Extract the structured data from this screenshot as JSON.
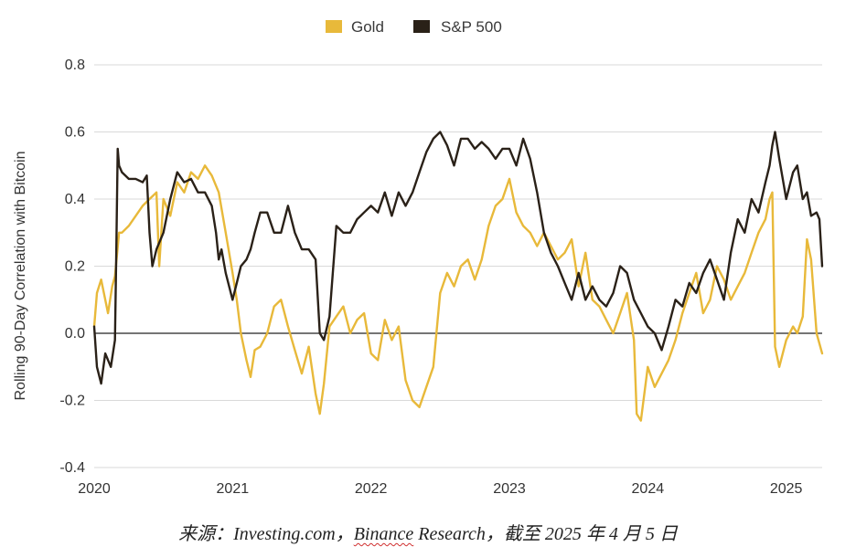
{
  "chart_data": {
    "type": "line",
    "ylabel": "Rolling 90-Day Correlation with Bitcoin",
    "ylim": [
      -0.4,
      0.8
    ],
    "yticks": [
      -0.4,
      -0.2,
      0.0,
      0.2,
      0.4,
      0.6,
      0.8
    ],
    "ytick_labels": [
      "-0.4",
      "-0.2",
      "0.0",
      "0.2",
      "0.4",
      "0.6",
      "0.8"
    ],
    "xlim": [
      2020.0,
      2025.26
    ],
    "xticks": [
      2020,
      2021,
      2022,
      2023,
      2024,
      2025
    ],
    "xtick_labels": [
      "2020",
      "2021",
      "2022",
      "2023",
      "2024",
      "2025"
    ],
    "grid": "horizontal",
    "legend_position": "top-center",
    "series": [
      {
        "name": "Gold",
        "color": "#e8b93a",
        "x": [
          2020.0,
          2020.02,
          2020.05,
          2020.08,
          2020.1,
          2020.13,
          2020.15,
          2020.18,
          2020.2,
          2020.25,
          2020.3,
          2020.35,
          2020.4,
          2020.45,
          2020.47,
          2020.5,
          2020.55,
          2020.6,
          2020.65,
          2020.7,
          2020.75,
          2020.8,
          2020.85,
          2020.9,
          2020.95,
          2021.0,
          2021.03,
          2021.06,
          2021.1,
          2021.13,
          2021.16,
          2021.2,
          2021.25,
          2021.3,
          2021.35,
          2021.4,
          2021.45,
          2021.5,
          2021.55,
          2021.6,
          2021.63,
          2021.66,
          2021.7,
          2021.75,
          2021.8,
          2021.85,
          2021.9,
          2021.95,
          2022.0,
          2022.05,
          2022.1,
          2022.15,
          2022.2,
          2022.25,
          2022.3,
          2022.35,
          2022.4,
          2022.45,
          2022.5,
          2022.55,
          2022.6,
          2022.65,
          2022.7,
          2022.75,
          2022.8,
          2022.85,
          2022.9,
          2022.95,
          2023.0,
          2023.05,
          2023.1,
          2023.15,
          2023.2,
          2023.25,
          2023.3,
          2023.35,
          2023.4,
          2023.45,
          2023.5,
          2023.55,
          2023.6,
          2023.65,
          2023.7,
          2023.75,
          2023.8,
          2023.85,
          2023.9,
          2023.92,
          2023.95,
          2024.0,
          2024.05,
          2024.1,
          2024.15,
          2024.2,
          2024.25,
          2024.3,
          2024.35,
          2024.4,
          2024.45,
          2024.5,
          2024.55,
          2024.6,
          2024.65,
          2024.7,
          2024.75,
          2024.8,
          2024.85,
          2024.88,
          2024.9,
          2024.92,
          2024.95,
          2025.0,
          2025.05,
          2025.08,
          2025.12,
          2025.15,
          2025.18,
          2025.22,
          2025.26
        ],
        "y": [
          0.02,
          0.12,
          0.16,
          0.1,
          0.06,
          0.14,
          0.17,
          0.3,
          0.3,
          0.32,
          0.35,
          0.38,
          0.4,
          0.42,
          0.2,
          0.4,
          0.35,
          0.45,
          0.42,
          0.48,
          0.46,
          0.5,
          0.47,
          0.42,
          0.3,
          0.18,
          0.1,
          0.0,
          -0.08,
          -0.13,
          -0.05,
          -0.04,
          0.0,
          0.08,
          0.1,
          0.02,
          -0.05,
          -0.12,
          -0.04,
          -0.18,
          -0.24,
          -0.15,
          0.02,
          0.05,
          0.08,
          0.0,
          0.04,
          0.06,
          -0.06,
          -0.08,
          0.04,
          -0.02,
          0.02,
          -0.14,
          -0.2,
          -0.22,
          -0.16,
          -0.1,
          0.12,
          0.18,
          0.14,
          0.2,
          0.22,
          0.16,
          0.22,
          0.32,
          0.38,
          0.4,
          0.46,
          0.36,
          0.32,
          0.3,
          0.26,
          0.3,
          0.26,
          0.22,
          0.24,
          0.28,
          0.14,
          0.24,
          0.1,
          0.08,
          0.04,
          0.0,
          0.06,
          0.12,
          -0.02,
          -0.24,
          -0.26,
          -0.1,
          -0.16,
          -0.12,
          -0.08,
          -0.02,
          0.06,
          0.12,
          0.18,
          0.06,
          0.1,
          0.2,
          0.16,
          0.1,
          0.14,
          0.18,
          0.24,
          0.3,
          0.34,
          0.4,
          0.42,
          -0.04,
          -0.1,
          -0.02,
          0.02,
          0.0,
          0.05,
          0.28,
          0.22,
          0.0,
          -0.06
        ]
      },
      {
        "name": "S&P 500",
        "color": "#2a2118",
        "x": [
          2020.0,
          2020.02,
          2020.05,
          2020.08,
          2020.12,
          2020.15,
          2020.16,
          2020.17,
          2020.18,
          2020.2,
          2020.25,
          2020.3,
          2020.35,
          2020.38,
          2020.4,
          2020.42,
          2020.45,
          2020.5,
          2020.55,
          2020.6,
          2020.65,
          2020.7,
          2020.75,
          2020.8,
          2020.85,
          2020.88,
          2020.9,
          2020.92,
          2020.95,
          2021.0,
          2021.03,
          2021.06,
          2021.1,
          2021.13,
          2021.16,
          2021.2,
          2021.25,
          2021.3,
          2021.35,
          2021.4,
          2021.45,
          2021.5,
          2021.55,
          2021.6,
          2021.63,
          2021.66,
          2021.7,
          2021.75,
          2021.8,
          2021.85,
          2021.9,
          2021.95,
          2022.0,
          2022.05,
          2022.1,
          2022.15,
          2022.2,
          2022.25,
          2022.3,
          2022.35,
          2022.4,
          2022.45,
          2022.5,
          2022.55,
          2022.6,
          2022.65,
          2022.7,
          2022.75,
          2022.8,
          2022.85,
          2022.9,
          2022.95,
          2023.0,
          2023.05,
          2023.1,
          2023.15,
          2023.2,
          2023.25,
          2023.3,
          2023.35,
          2023.4,
          2023.45,
          2023.5,
          2023.55,
          2023.6,
          2023.65,
          2023.7,
          2023.75,
          2023.8,
          2023.85,
          2023.9,
          2023.95,
          2024.0,
          2024.05,
          2024.1,
          2024.15,
          2024.2,
          2024.25,
          2024.3,
          2024.35,
          2024.4,
          2024.45,
          2024.5,
          2024.55,
          2024.6,
          2024.65,
          2024.7,
          2024.75,
          2024.8,
          2024.85,
          2024.88,
          2024.9,
          2024.92,
          2024.95,
          2025.0,
          2025.05,
          2025.08,
          2025.12,
          2025.15,
          2025.18,
          2025.22,
          2025.24,
          2025.26
        ],
        "y": [
          0.02,
          -0.1,
          -0.15,
          -0.06,
          -0.1,
          -0.02,
          0.25,
          0.55,
          0.5,
          0.48,
          0.46,
          0.46,
          0.45,
          0.47,
          0.3,
          0.2,
          0.25,
          0.3,
          0.4,
          0.48,
          0.45,
          0.46,
          0.42,
          0.42,
          0.38,
          0.3,
          0.22,
          0.25,
          0.18,
          0.1,
          0.15,
          0.2,
          0.22,
          0.25,
          0.3,
          0.36,
          0.36,
          0.3,
          0.3,
          0.38,
          0.3,
          0.25,
          0.25,
          0.22,
          0.0,
          -0.02,
          0.05,
          0.32,
          0.3,
          0.3,
          0.34,
          0.36,
          0.38,
          0.36,
          0.42,
          0.35,
          0.42,
          0.38,
          0.42,
          0.48,
          0.54,
          0.58,
          0.6,
          0.56,
          0.5,
          0.58,
          0.58,
          0.55,
          0.57,
          0.55,
          0.52,
          0.55,
          0.55,
          0.5,
          0.58,
          0.52,
          0.42,
          0.3,
          0.24,
          0.2,
          0.15,
          0.1,
          0.18,
          0.1,
          0.14,
          0.1,
          0.08,
          0.12,
          0.2,
          0.18,
          0.1,
          0.06,
          0.02,
          0.0,
          -0.05,
          0.02,
          0.1,
          0.08,
          0.15,
          0.12,
          0.18,
          0.22,
          0.16,
          0.1,
          0.24,
          0.34,
          0.3,
          0.4,
          0.36,
          0.45,
          0.5,
          0.56,
          0.6,
          0.52,
          0.4,
          0.48,
          0.5,
          0.4,
          0.42,
          0.35,
          0.36,
          0.34,
          0.2
        ]
      }
    ]
  },
  "source_note": {
    "prefix": "来源：Investing.com，",
    "underlined": "Binance",
    "suffix": " Research，截至 2025 年 4 月 5 日"
  }
}
